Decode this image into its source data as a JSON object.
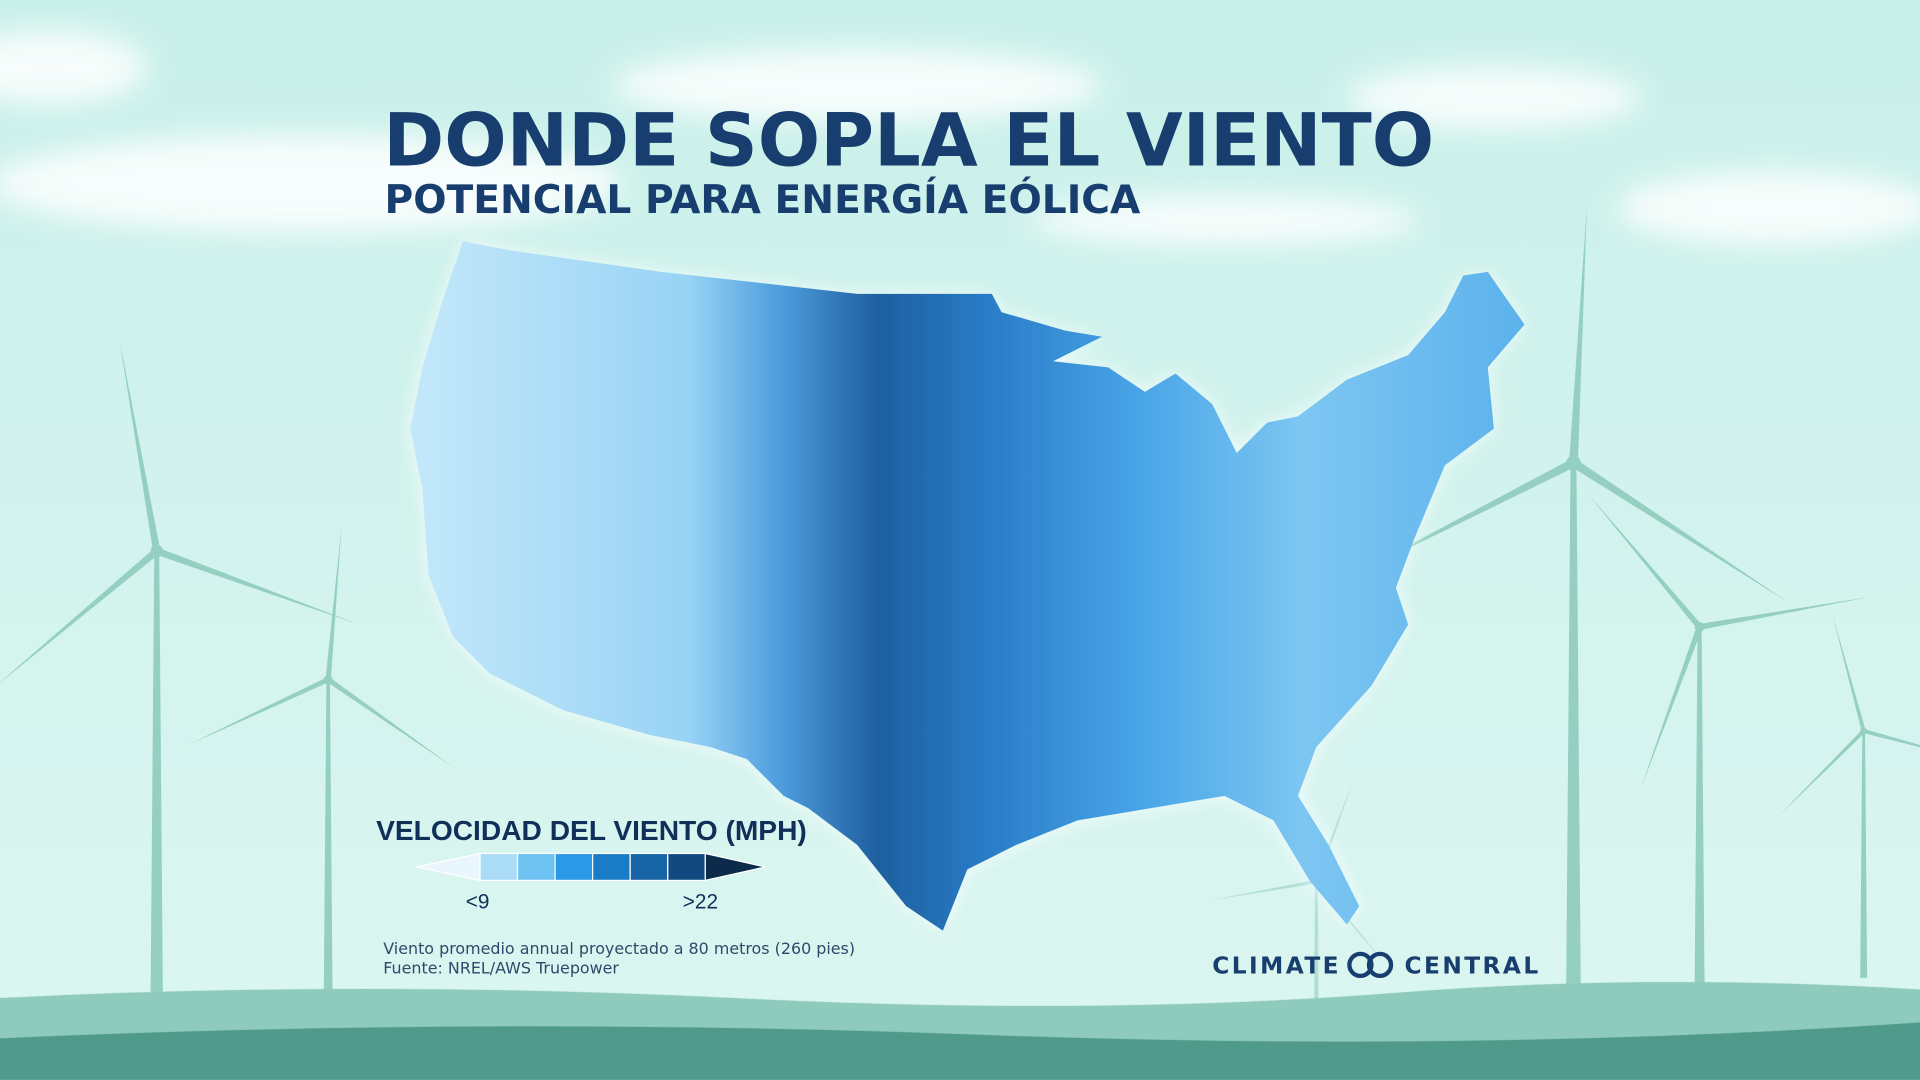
{
  "title": "DONDE SOPLA EL VIENTO",
  "subtitle": "POTENCIAL PARA ENERGÍA EÓLICA",
  "legend": {
    "title": "VELOCIDAD DEL VIENTO (MPH)",
    "colors": [
      "#eaf6fd",
      "#aadcf8",
      "#6ec2f2",
      "#2a9ae6",
      "#1a7cc6",
      "#1663a5",
      "#124a80",
      "#0c2a4a"
    ],
    "min_label": "<9",
    "max_label": ">22"
  },
  "notes": [
    "Viento promedio annual proyectado a 80 metros (260 pies)",
    "Fuente: NREL/AWS Truepower"
  ],
  "brand": [
    "CLIMATE",
    "CENTRAL"
  ]
}
